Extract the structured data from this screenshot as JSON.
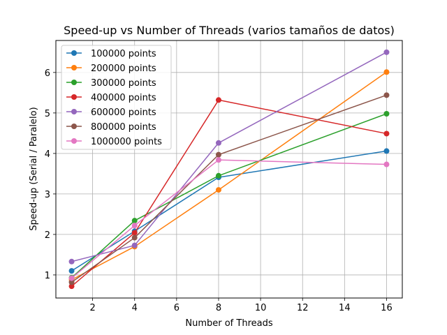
{
  "chart_data": {
    "type": "line",
    "title": "Speed-up vs Number of Threads (varios tamaños de datos)",
    "xlabel": "Number of Threads",
    "ylabel": "Speed-up (Serial / Paralelo)",
    "x": [
      1,
      4,
      8,
      16
    ],
    "xlim": [
      0.25,
      16.75
    ],
    "ylim": [
      0.43,
      6.79
    ],
    "xticks": [
      2,
      4,
      6,
      8,
      10,
      12,
      14,
      16
    ],
    "yticks": [
      1,
      2,
      3,
      4,
      5,
      6
    ],
    "grid": true,
    "legend_position": "top-left",
    "series": [
      {
        "name": "100000 points",
        "color": "#1f77b4",
        "values": [
          1.1,
          2.08,
          3.41,
          4.06
        ]
      },
      {
        "name": "200000 points",
        "color": "#ff7f0e",
        "values": [
          0.88,
          1.7,
          3.1,
          6.01
        ]
      },
      {
        "name": "300000 points",
        "color": "#2ca02c",
        "values": [
          0.93,
          2.34,
          3.45,
          4.98
        ]
      },
      {
        "name": "400000 points",
        "color": "#d62728",
        "values": [
          0.72,
          2.04,
          5.32,
          4.49
        ]
      },
      {
        "name": "600000 points",
        "color": "#9467bd",
        "values": [
          1.33,
          1.73,
          4.26,
          6.5
        ]
      },
      {
        "name": "800000 points",
        "color": "#8c564b",
        "values": [
          0.82,
          1.92,
          3.97,
          5.44
        ]
      },
      {
        "name": "1000000 points",
        "color": "#e377c2",
        "values": [
          0.92,
          2.22,
          3.84,
          3.73
        ]
      }
    ]
  }
}
